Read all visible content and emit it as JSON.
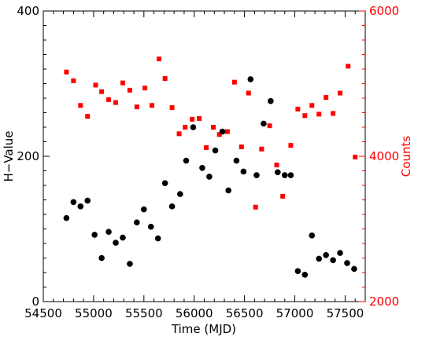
{
  "chart_data": {
    "type": "scatter",
    "xlabel": "Time (MJD)",
    "ylabel_left": "H−Value",
    "ylabel_right": "Counts",
    "xlim": [
      54500,
      57700
    ],
    "ylim_left": [
      0,
      400
    ],
    "ylim_right": [
      2000,
      6000
    ],
    "x_ticks": [
      "54500",
      "55000",
      "55500",
      "56000",
      "56500",
      "57000",
      "57500"
    ],
    "y_left_ticks": [
      "0",
      "200",
      "400"
    ],
    "y_right_ticks": [
      "2000",
      "4000",
      "6000"
    ],
    "colors": {
      "h_value": "#000000",
      "counts": "#ff0000"
    },
    "series": [
      {
        "axis": "left",
        "marker": "circle",
        "points": [
          [
            54730,
            115
          ],
          [
            54800,
            137
          ],
          [
            54870,
            131
          ],
          [
            54940,
            139
          ],
          [
            55010,
            92
          ],
          [
            55080,
            60
          ],
          [
            55150,
            96
          ],
          [
            55220,
            81
          ],
          [
            55290,
            88
          ],
          [
            55360,
            52
          ],
          [
            55430,
            109
          ],
          [
            55500,
            127
          ],
          [
            55570,
            103
          ],
          [
            55640,
            87
          ],
          [
            55710,
            163
          ],
          [
            55780,
            131
          ],
          [
            55860,
            148
          ],
          [
            55920,
            194
          ],
          [
            55990,
            240
          ],
          [
            56080,
            184
          ],
          [
            56150,
            172
          ],
          [
            56210,
            208
          ],
          [
            56280,
            234
          ],
          [
            56340,
            153
          ],
          [
            56420,
            194
          ],
          [
            56490,
            179
          ],
          [
            56560,
            306
          ],
          [
            56620,
            174
          ],
          [
            56690,
            245
          ],
          [
            56760,
            276
          ],
          [
            56830,
            178
          ],
          [
            56900,
            174
          ],
          [
            56960,
            174
          ],
          [
            57030,
            42
          ],
          [
            57100,
            37
          ],
          [
            57170,
            91
          ],
          [
            57240,
            59
          ],
          [
            57310,
            64
          ],
          [
            57380,
            57
          ],
          [
            57450,
            67
          ],
          [
            57520,
            53
          ],
          [
            57590,
            45
          ]
        ]
      },
      {
        "axis": "right",
        "marker": "square",
        "points": [
          [
            54730,
            5160
          ],
          [
            54800,
            5040
          ],
          [
            54870,
            4700
          ],
          [
            54940,
            4550
          ],
          [
            55020,
            4980
          ],
          [
            55080,
            4890
          ],
          [
            55150,
            4780
          ],
          [
            55220,
            4740
          ],
          [
            55290,
            5010
          ],
          [
            55360,
            4910
          ],
          [
            55430,
            4680
          ],
          [
            55510,
            4940
          ],
          [
            55580,
            4700
          ],
          [
            55650,
            5340
          ],
          [
            55710,
            5070
          ],
          [
            55780,
            4670
          ],
          [
            55850,
            4310
          ],
          [
            55910,
            4400
          ],
          [
            55980,
            4510
          ],
          [
            56050,
            4520
          ],
          [
            56120,
            4120
          ],
          [
            56190,
            4400
          ],
          [
            56250,
            4300
          ],
          [
            56330,
            4340
          ],
          [
            56400,
            5020
          ],
          [
            56470,
            4130
          ],
          [
            56540,
            4870
          ],
          [
            56610,
            3300
          ],
          [
            56670,
            4100
          ],
          [
            56750,
            4420
          ],
          [
            56820,
            3880
          ],
          [
            56880,
            3450
          ],
          [
            56960,
            4150
          ],
          [
            57030,
            4650
          ],
          [
            57100,
            4560
          ],
          [
            57170,
            4700
          ],
          [
            57240,
            4580
          ],
          [
            57310,
            4810
          ],
          [
            57380,
            4590
          ],
          [
            57450,
            4870
          ],
          [
            57530,
            5240
          ],
          [
            57600,
            3990
          ]
        ]
      }
    ]
  }
}
